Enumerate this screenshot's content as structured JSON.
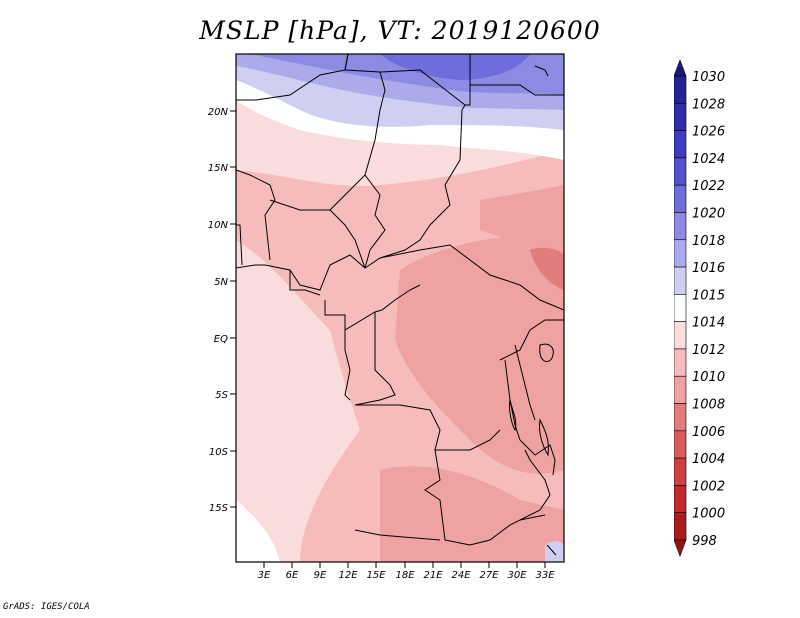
{
  "title": "MSLP [hPa], VT: 2019120600",
  "credit": "GrADS: IGES/COLA",
  "map": {
    "lat_labels": [
      "20N",
      "15N",
      "10N",
      "5N",
      "EQ",
      "5S",
      "10S",
      "15S"
    ],
    "lon_labels": [
      "3E",
      "6E",
      "9E",
      "12E",
      "15E",
      "18E",
      "21E",
      "24E",
      "27E",
      "30E",
      "33E"
    ]
  },
  "colorbar": {
    "levels": [
      "1030",
      "1028",
      "1026",
      "1024",
      "1022",
      "1020",
      "1018",
      "1016",
      "1015",
      "1014",
      "1012",
      "1010",
      "1008",
      "1006",
      "1004",
      "1002",
      "1000",
      "998"
    ],
    "colors": [
      "#1a1a7a",
      "#232395",
      "#2e2eab",
      "#3c3cbf",
      "#5353cf",
      "#6d6ddb",
      "#8b8be4",
      "#ababec",
      "#cfcff4",
      "#ffffff",
      "#fbdcdc",
      "#f6bcbc",
      "#eea2a2",
      "#e07c7c",
      "#d85c5c",
      "#cf3f3f",
      "#c02a2a",
      "#aa1c1c",
      "#8f1414"
    ]
  }
}
